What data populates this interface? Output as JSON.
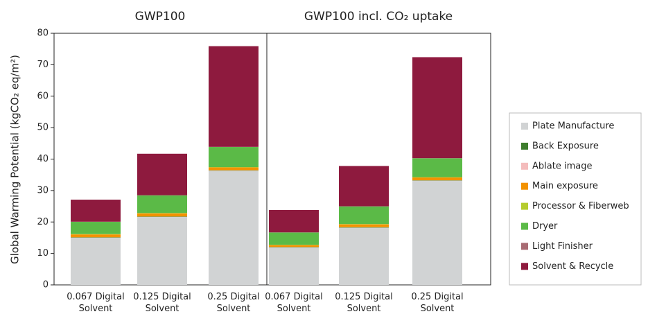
{
  "chart_data": [
    {
      "type": "bar",
      "stacked": true,
      "title": "GWP100",
      "y_label": "Global Warming Potential (kgCO₂ eq/m²)",
      "categories": [
        "0.067 Digital Solvent",
        "0.125 Digital Solvent",
        "0.25 Digital Solvent"
      ],
      "ylim": [
        0,
        80
      ],
      "yticks": [
        0,
        10,
        20,
        30,
        40,
        50,
        60,
        70,
        80
      ],
      "series": [
        {
          "name": "Plate Manufacture",
          "color": "#d1d3d4",
          "values": [
            15,
            21.6,
            36.3
          ]
        },
        {
          "name": "Back Exposure",
          "color": "#3e7d2d",
          "values": [
            0.1,
            0.1,
            0.1
          ]
        },
        {
          "name": "Ablate image",
          "color": "#f4bcbc",
          "values": [
            0.05,
            0.05,
            0.05
          ]
        },
        {
          "name": "Main exposure",
          "color": "#f39200",
          "values": [
            0.9,
            1.0,
            0.9
          ]
        },
        {
          "name": "Processor & Fiberweb",
          "color": "#b5cc2e",
          "values": [
            0.1,
            0.1,
            0.1
          ]
        },
        {
          "name": "Dryer",
          "color": "#5bba47",
          "values": [
            3.9,
            5.6,
            6.4
          ]
        },
        {
          "name": "Light Finisher",
          "color": "#a86b73",
          "values": [
            0.05,
            0.05,
            0.05
          ]
        },
        {
          "name": "Solvent & Recycle",
          "color": "#8e1a3e",
          "values": [
            7,
            13.2,
            32
          ]
        }
      ]
    },
    {
      "type": "bar",
      "stacked": true,
      "title": "GWP100 incl. CO₂ uptake",
      "categories": [
        "0.067 Digital Solvent",
        "0.125 Digital Solvent",
        "0.25 Digital Solvent"
      ],
      "ylim": [
        0,
        80
      ],
      "series": [
        {
          "name": "Plate Manufacture",
          "color": "#d1d3d4",
          "values": [
            11.9,
            18.2,
            33.1
          ]
        },
        {
          "name": "Back Exposure",
          "color": "#3e7d2d",
          "values": [
            0.1,
            0.1,
            0.1
          ]
        },
        {
          "name": "Ablate image",
          "color": "#f4bcbc",
          "values": [
            0.05,
            0.05,
            0.05
          ]
        },
        {
          "name": "Main exposure",
          "color": "#f39200",
          "values": [
            0.6,
            0.9,
            0.9
          ]
        },
        {
          "name": "Processor & Fiberweb",
          "color": "#b5cc2e",
          "values": [
            0.1,
            0.1,
            0.1
          ]
        },
        {
          "name": "Dryer",
          "color": "#5bba47",
          "values": [
            3.9,
            5.6,
            6.0
          ]
        },
        {
          "name": "Light Finisher",
          "color": "#a86b73",
          "values": [
            0.05,
            0.05,
            0.05
          ]
        },
        {
          "name": "Solvent & Recycle",
          "color": "#8e1a3e",
          "values": [
            7.1,
            12.8,
            32.1
          ]
        }
      ]
    }
  ]
}
